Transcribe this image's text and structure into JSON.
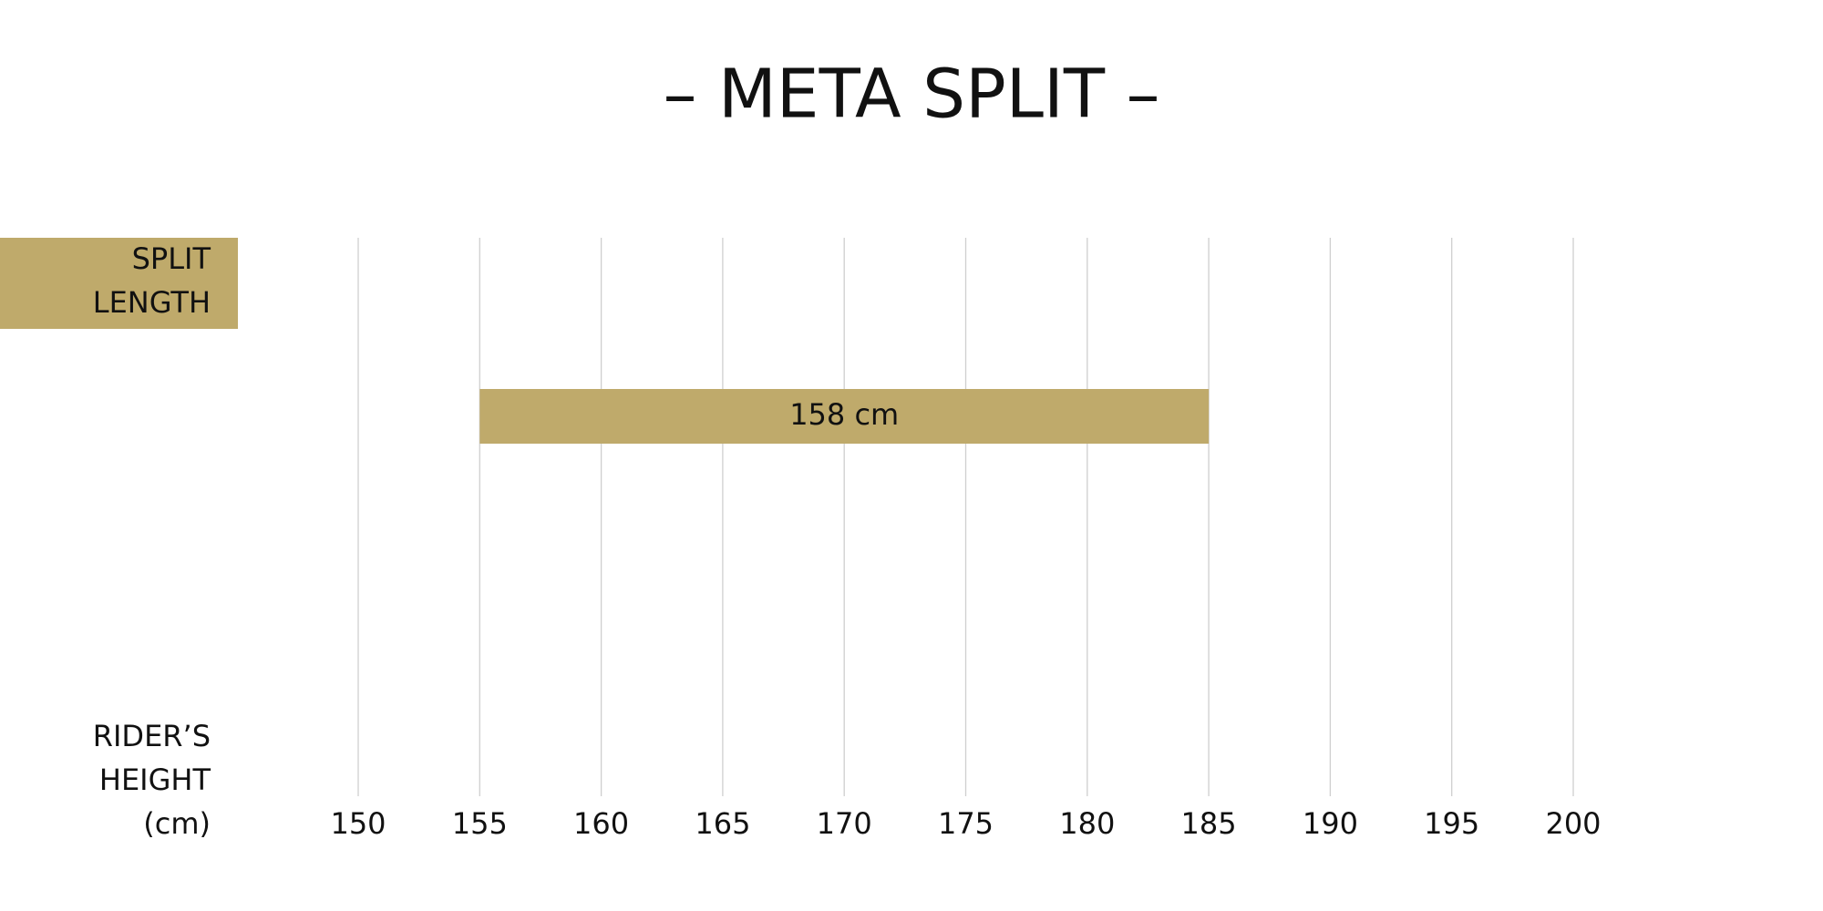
{
  "chart_data": {
    "type": "range_bar",
    "title": "– META SPLIT –",
    "ylabel": [
      "SPLIT",
      "LENGTH"
    ],
    "xlabel": [
      "RIDER’S",
      "HEIGHT",
      "(cm)"
    ],
    "categories": [
      "158 cm"
    ],
    "low": [
      155
    ],
    "high": [
      185
    ],
    "color": "#bfaa6b",
    "xlim": [
      150,
      200
    ],
    "xticks": [
      150,
      155,
      160,
      165,
      170,
      175,
      180,
      185,
      190,
      195,
      200
    ],
    "grid": true
  }
}
